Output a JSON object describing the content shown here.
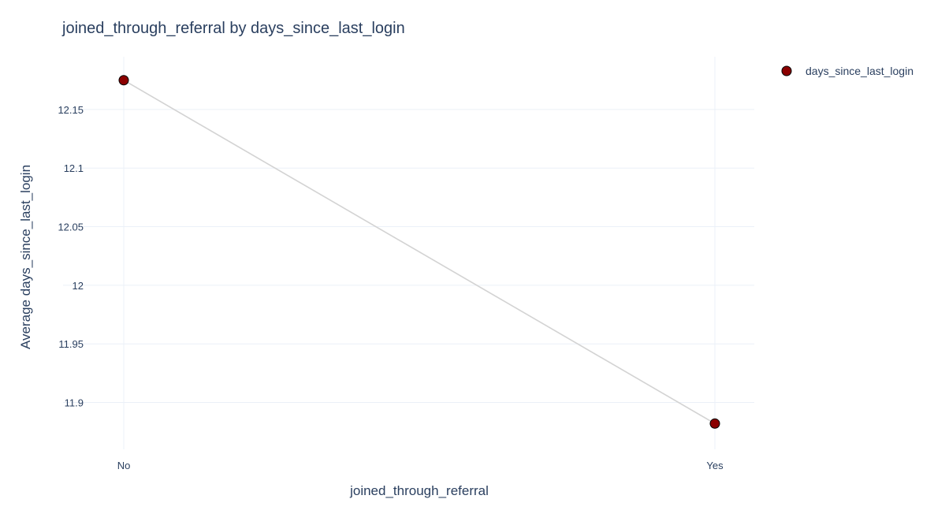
{
  "chart_data": {
    "type": "line",
    "title": "joined_through_referral by days_since_last_login",
    "xlabel": "joined_through_referral",
    "ylabel": "Average days_since_last_login",
    "categories": [
      "No",
      "Yes"
    ],
    "series": [
      {
        "name": "days_since_last_login",
        "values": [
          12.175,
          11.882
        ]
      }
    ],
    "yticks": [
      11.9,
      11.95,
      12,
      12.05,
      12.1,
      12.15
    ],
    "ytick_labels": [
      "11.9",
      "11.95",
      "12",
      "12.05",
      "12.1",
      "12.15"
    ],
    "ylim": [
      11.86,
      12.195
    ],
    "grid": true,
    "legend_position": "top-right",
    "colors": {
      "marker": "#8b0000",
      "line": "#d3d3d3",
      "grid": "#ebf0f8",
      "text": "#2a3f5f"
    }
  }
}
